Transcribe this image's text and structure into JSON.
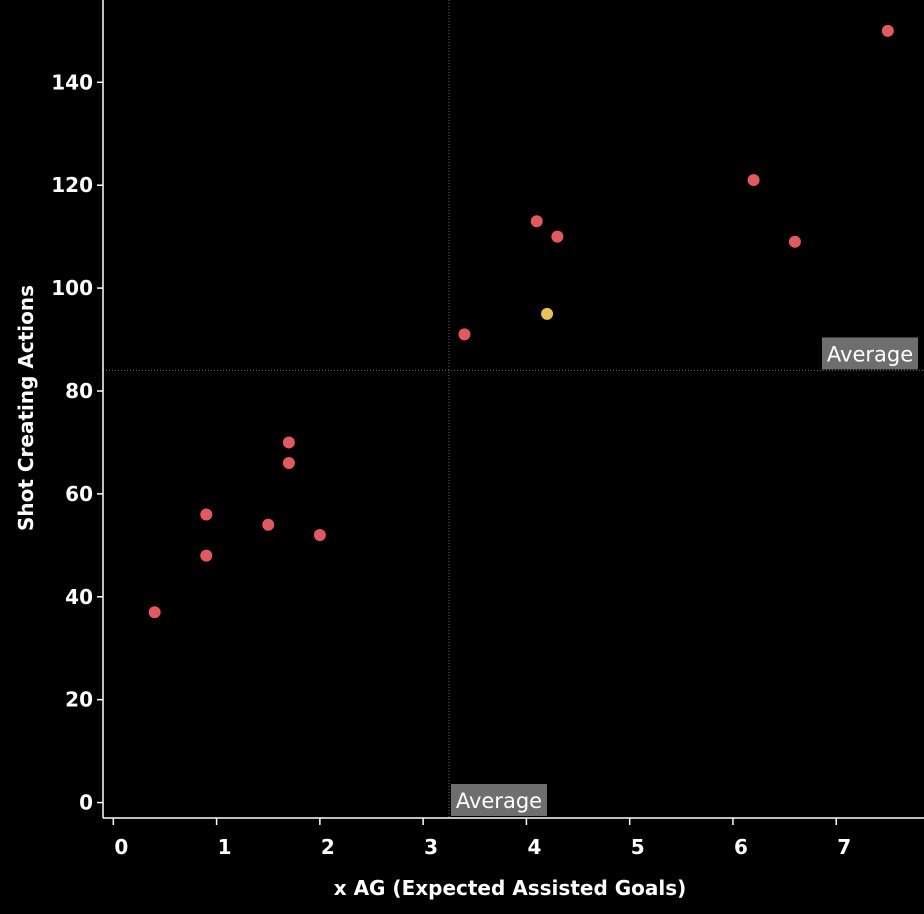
{
  "chart_data": {
    "type": "scatter",
    "title": "",
    "xlabel": "x AG (Expected Assisted Goals)",
    "ylabel": "Shot Creating Actions",
    "xlim": [
      -0.1,
      7.85
    ],
    "ylim": [
      -3,
      156
    ],
    "x_ticks": [
      0,
      1,
      2,
      3,
      4,
      5,
      6,
      7
    ],
    "y_ticks": [
      0,
      20,
      40,
      60,
      80,
      100,
      120,
      140
    ],
    "grid": false,
    "colors": {
      "background": "#000000",
      "axis": "#ffffff",
      "point": "#e05a5f",
      "highlight": "#e6c35a",
      "reference_line": "#6a6a6a",
      "reference_label_bg": "#6e6e6e"
    },
    "points": [
      {
        "x": 7.5,
        "y": 150,
        "highlight": false
      },
      {
        "x": 6.2,
        "y": 121,
        "highlight": false
      },
      {
        "x": 6.6,
        "y": 109,
        "highlight": false
      },
      {
        "x": 4.1,
        "y": 113,
        "highlight": false
      },
      {
        "x": 4.3,
        "y": 110,
        "highlight": false
      },
      {
        "x": 4.2,
        "y": 95,
        "highlight": true
      },
      {
        "x": 3.4,
        "y": 91,
        "highlight": false
      },
      {
        "x": 1.7,
        "y": 70,
        "highlight": false
      },
      {
        "x": 1.7,
        "y": 66,
        "highlight": false
      },
      {
        "x": 0.9,
        "y": 56,
        "highlight": false
      },
      {
        "x": 1.5,
        "y": 54,
        "highlight": false
      },
      {
        "x": 2.0,
        "y": 52,
        "highlight": false
      },
      {
        "x": 0.9,
        "y": 48,
        "highlight": false
      },
      {
        "x": 0.4,
        "y": 37,
        "highlight": false
      }
    ],
    "reference_lines": [
      {
        "axis": "x",
        "value": 3.25,
        "label": "Average"
      },
      {
        "axis": "y",
        "value": 84,
        "label": "Average"
      }
    ]
  }
}
